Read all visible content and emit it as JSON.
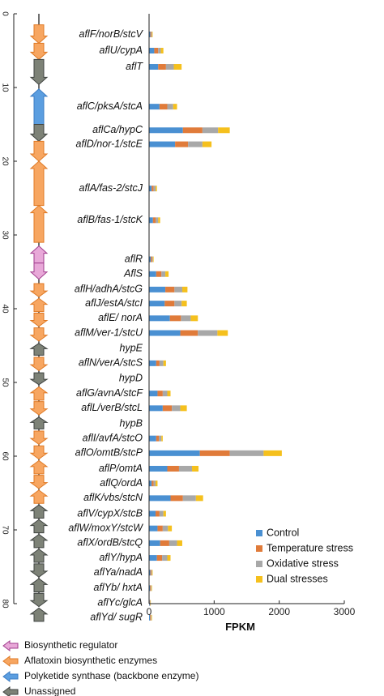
{
  "chart_data": {
    "type": "bar",
    "orientation": "horizontal",
    "stacked": true,
    "xlabel": "FPKM",
    "xlim": [
      0,
      3000
    ],
    "x_ticks": [
      "0",
      "1000",
      "2000",
      "3000"
    ],
    "position_axis": {
      "range": [
        0,
        80
      ],
      "ticks": [
        "0",
        "10",
        "20",
        "30",
        "40",
        "50",
        "60",
        "70",
        "80"
      ]
    },
    "legend": {
      "placement": "bottom-right",
      "entries": [
        {
          "name": "Control",
          "color": "#4a90d2"
        },
        {
          "name": "Temperature stress",
          "color": "#e07b3a"
        },
        {
          "name": "Oxidative stress",
          "color": "#a8a8a8"
        },
        {
          "name": "Dual stresses",
          "color": "#f5c01d"
        }
      ]
    },
    "genes": [
      {
        "label": "aflF/norB/stcV",
        "y": 2.8,
        "values": [
          20,
          15,
          10,
          10
        ]
      },
      {
        "label": "aflU/cypA",
        "y": 5.0,
        "values": [
          80,
          60,
          40,
          40
        ]
      },
      {
        "label": "aflT",
        "y": 7.2,
        "values": [
          140,
          120,
          120,
          120
        ]
      },
      {
        "label": "aflC/pksA/stcA",
        "y": 12.6,
        "values": [
          160,
          120,
          90,
          60
        ]
      },
      {
        "label": "aflCa/hypC",
        "y": 15.8,
        "values": [
          520,
          300,
          240,
          180
        ]
      },
      {
        "label": "aflD/nor-1/stcE",
        "y": 17.7,
        "values": [
          400,
          200,
          220,
          140
        ]
      },
      {
        "label": "aflA/fas-2/stcJ",
        "y": 23.7,
        "values": [
          40,
          30,
          30,
          20
        ]
      },
      {
        "label": "aflB/fas-1/stcK",
        "y": 28.0,
        "values": [
          60,
          40,
          40,
          30
        ]
      },
      {
        "label": "aflR",
        "y": 33.3,
        "values": [
          25,
          20,
          15,
          10
        ]
      },
      {
        "label": "AflS",
        "y": 35.3,
        "values": [
          110,
          80,
          60,
          50
        ]
      },
      {
        "label": "aflH/adhA/stcG",
        "y": 37.4,
        "values": [
          250,
          140,
          120,
          80
        ]
      },
      {
        "label": "aflJ/estA/stcI",
        "y": 39.3,
        "values": [
          240,
          150,
          110,
          80
        ]
      },
      {
        "label": "aflE/ norA",
        "y": 41.3,
        "values": [
          320,
          170,
          150,
          110
        ]
      },
      {
        "label": "aflM/ver-1/stcU",
        "y": 43.3,
        "values": [
          480,
          270,
          300,
          160
        ]
      },
      {
        "label": "hypE",
        "y": 45.4,
        "values": [
          0,
          0,
          0,
          0
        ]
      },
      {
        "label": "aflN/verA/stcS",
        "y": 47.4,
        "values": [
          110,
          50,
          60,
          40
        ]
      },
      {
        "label": "hypD",
        "y": 49.5,
        "values": [
          0,
          0,
          0,
          0
        ]
      },
      {
        "label": "aflG/avnA/stcF",
        "y": 51.5,
        "values": [
          130,
          80,
          70,
          50
        ]
      },
      {
        "label": "aflL/verB/stcL",
        "y": 53.5,
        "values": [
          210,
          140,
          130,
          100
        ]
      },
      {
        "label": "hypB",
        "y": 55.6,
        "values": [
          0,
          0,
          0,
          0
        ]
      },
      {
        "label": "aflI/avfA/stcO",
        "y": 57.6,
        "values": [
          110,
          40,
          40,
          20
        ]
      },
      {
        "label": "aflO/omtB/stcP",
        "y": 59.6,
        "values": [
          780,
          460,
          520,
          280
        ]
      },
      {
        "label": "aflP/omtA",
        "y": 61.7,
        "values": [
          280,
          180,
          200,
          100
        ]
      },
      {
        "label": "aflQ/ordA",
        "y": 63.7,
        "values": [
          40,
          30,
          30,
          30
        ]
      },
      {
        "label": "aflK/vbs/stcN",
        "y": 65.7,
        "values": [
          330,
          190,
          200,
          110
        ]
      },
      {
        "label": "aflV/cypX/stcB",
        "y": 67.8,
        "values": [
          100,
          60,
          60,
          40
        ]
      },
      {
        "label": "aflW/moxY/stcW",
        "y": 69.8,
        "values": [
          130,
          80,
          80,
          60
        ]
      },
      {
        "label": "aflX/ordB/stcQ",
        "y": 71.8,
        "values": [
          170,
          140,
          120,
          80
        ]
      },
      {
        "label": "aflY/hypA",
        "y": 73.8,
        "values": [
          120,
          80,
          80,
          50
        ]
      },
      {
        "label": "aflYa/nadA",
        "y": 75.8,
        "values": [
          20,
          15,
          10,
          10
        ]
      },
      {
        "label": "aflYb/ hxtA",
        "y": 77.9,
        "values": [
          15,
          10,
          10,
          10
        ]
      },
      {
        "label": "aflYc/glcA",
        "y": 79.9,
        "values": [
          10,
          5,
          5,
          5
        ]
      },
      {
        "label": "aflYd/ sugR",
        "y": 81.9,
        "values": [
          15,
          10,
          10,
          10
        ]
      }
    ],
    "gene_arrows": [
      {
        "y0": 1.5,
        "y1": 4.0,
        "dir": "down",
        "category": "enzyme"
      },
      {
        "y0": 4.0,
        "y1": 6.2,
        "dir": "down",
        "category": "enzyme"
      },
      {
        "y0": 6.2,
        "y1": 9.6,
        "dir": "down",
        "category": "unassigned"
      },
      {
        "y0": 10.2,
        "y1": 15.0,
        "dir": "up",
        "category": "pks"
      },
      {
        "y0": 15.0,
        "y1": 17.3,
        "dir": "down",
        "category": "unassigned"
      },
      {
        "y0": 17.3,
        "y1": 20.0,
        "dir": "down",
        "category": "enzyme"
      },
      {
        "y0": 20.0,
        "y1": 26.0,
        "dir": "up",
        "category": "enzyme"
      },
      {
        "y0": 26.0,
        "y1": 31.0,
        "dir": "up",
        "category": "enzyme"
      },
      {
        "y0": 31.5,
        "y1": 33.8,
        "dir": "up",
        "category": "regulator"
      },
      {
        "y0": 33.8,
        "y1": 36.0,
        "dir": "down",
        "category": "regulator"
      },
      {
        "y0": 36.6,
        "y1": 38.4,
        "dir": "down",
        "category": "enzyme"
      },
      {
        "y0": 38.6,
        "y1": 40.4,
        "dir": "up",
        "category": "enzyme"
      },
      {
        "y0": 40.6,
        "y1": 42.4,
        "dir": "down",
        "category": "enzyme"
      },
      {
        "y0": 42.6,
        "y1": 44.4,
        "dir": "down",
        "category": "enzyme"
      },
      {
        "y0": 44.7,
        "y1": 46.3,
        "dir": "up",
        "category": "unassigned"
      },
      {
        "y0": 46.6,
        "y1": 48.4,
        "dir": "down",
        "category": "enzyme"
      },
      {
        "y0": 48.7,
        "y1": 50.3,
        "dir": "down",
        "category": "unassigned"
      },
      {
        "y0": 50.6,
        "y1": 52.4,
        "dir": "up",
        "category": "enzyme"
      },
      {
        "y0": 52.6,
        "y1": 54.4,
        "dir": "down",
        "category": "enzyme"
      },
      {
        "y0": 54.7,
        "y1": 56.3,
        "dir": "up",
        "category": "unassigned"
      },
      {
        "y0": 56.6,
        "y1": 58.4,
        "dir": "down",
        "category": "enzyme"
      },
      {
        "y0": 58.6,
        "y1": 60.4,
        "dir": "down",
        "category": "enzyme"
      },
      {
        "y0": 60.6,
        "y1": 62.4,
        "dir": "up",
        "category": "enzyme"
      },
      {
        "y0": 62.6,
        "y1": 64.4,
        "dir": "down",
        "category": "enzyme"
      },
      {
        "y0": 64.6,
        "y1": 66.4,
        "dir": "up",
        "category": "enzyme"
      },
      {
        "y0": 66.6,
        "y1": 68.4,
        "dir": "up",
        "category": "unassigned"
      },
      {
        "y0": 68.6,
        "y1": 70.4,
        "dir": "up",
        "category": "unassigned"
      },
      {
        "y0": 70.6,
        "y1": 72.4,
        "dir": "up",
        "category": "unassigned"
      },
      {
        "y0": 72.6,
        "y1": 74.4,
        "dir": "up",
        "category": "unassigned"
      },
      {
        "y0": 74.6,
        "y1": 76.4,
        "dir": "down",
        "category": "unassigned"
      },
      {
        "y0": 76.6,
        "y1": 78.4,
        "dir": "up",
        "category": "unassigned"
      },
      {
        "y0": 78.6,
        "y1": 80.4,
        "dir": "down",
        "category": "unassigned"
      },
      {
        "y0": 80.6,
        "y1": 82.4,
        "dir": "up",
        "category": "unassigned"
      }
    ]
  },
  "category_legend": [
    {
      "key": "regulator",
      "label": "Biosynthetic regulator",
      "fill": "#e8a8d8",
      "stroke": "#a13d8e"
    },
    {
      "key": "enzyme",
      "label": "Aflatoxin biosynthetic enzymes",
      "fill": "#f7a661",
      "stroke": "#e07a25"
    },
    {
      "key": "pks",
      "label": "Polyketide synthase (backbone enzyme)",
      "fill": "#5b9ee0",
      "stroke": "#3b7cc4"
    },
    {
      "key": "unassigned",
      "label": "Unassigned",
      "fill": "#7d8277",
      "stroke": "#3f4340"
    }
  ]
}
